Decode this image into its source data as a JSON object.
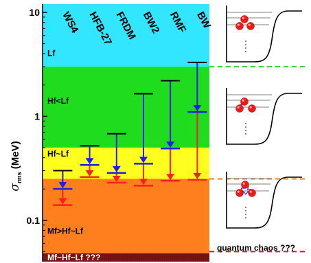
{
  "chart_data": {
    "type": "bar",
    "yscale": "log",
    "ylim": [
      0.04,
      12
    ],
    "ylabel": "σ",
    "ylabel_sub": "rms",
    "ylabel_unit": " (MeV)",
    "ytick_labels": [
      {
        "value": 10,
        "label": "10"
      },
      {
        "value": 1,
        "label": "1"
      },
      {
        "value": 0.1,
        "label": "0.1"
      }
    ],
    "minor_ticks": [
      0.05,
      0.06,
      0.07,
      0.08,
      0.09,
      0.2,
      0.3,
      0.4,
      0.5,
      0.6,
      0.7,
      0.8,
      0.9,
      2,
      3,
      4,
      5,
      6,
      7,
      8,
      9
    ],
    "regions": [
      {
        "label": "Lf",
        "from": 3.0,
        "to": 12,
        "color": "#33e6ff"
      },
      {
        "label": "Hf<Lf",
        "from": 0.5,
        "to": 3.0,
        "color": "#1fdc1f"
      },
      {
        "label": "Hf~Lf",
        "from": 0.25,
        "to": 0.5,
        "color": "#ffff1f"
      },
      {
        "label": "Mf>Hf~Lf",
        "from": 0.048,
        "to": 0.25,
        "color": "#ff7f1f"
      },
      {
        "label": "Mf~Hf~Lf ???",
        "from": 0.04,
        "to": 0.048,
        "color": "#7a1414"
      }
    ],
    "categories": [
      "WS4",
      "HFB-27",
      "FRDM",
      "BW2",
      "RMF",
      "BW"
    ],
    "series": [
      {
        "key": "start",
        "values": [
          0.3,
          0.52,
          0.68,
          1.65,
          2.2,
          3.3
        ],
        "color": "#000000"
      },
      {
        "key": "blue",
        "values": [
          0.2,
          0.34,
          0.285,
          0.35,
          0.49,
          1.1
        ],
        "color": "#1f1fe6"
      },
      {
        "key": "red",
        "values": [
          0.14,
          0.26,
          0.23,
          0.215,
          0.24,
          0.245
        ],
        "color": "#ff1f1f"
      }
    ],
    "thresholds": [
      {
        "value": 3.0,
        "color": "#22dd22"
      },
      {
        "value": 0.25,
        "color": "#f08020"
      },
      {
        "value": 0.05,
        "color": "#ee1111"
      }
    ]
  },
  "side_label": "quantum chaos ???",
  "panels": [
    {
      "name": "two-balls-panel",
      "links": 0
    },
    {
      "name": "two-balls-spring-panel",
      "links": 1
    },
    {
      "name": "three-balls-spring-panel",
      "links": 3
    }
  ]
}
